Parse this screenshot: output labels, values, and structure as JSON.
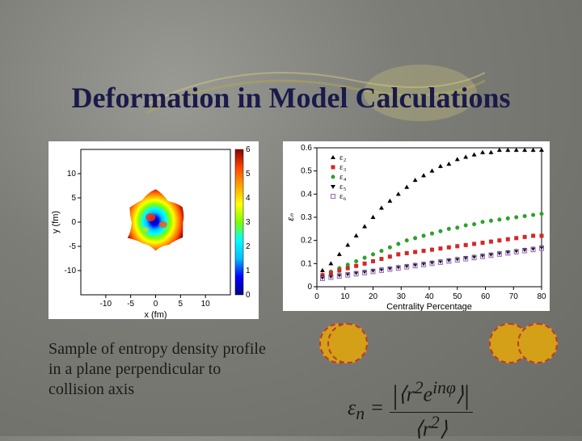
{
  "title": "Deformation in Model Calculations",
  "caption": "Sample of entropy density profile in a plane perpendicular to collision axis",
  "heatmap": {
    "xlabel": "x (fm)",
    "ylabel": "y (fm)",
    "xlim": [
      -15,
      15
    ],
    "ylim": [
      -15,
      15
    ],
    "xticks": [
      -10,
      -5,
      0,
      5,
      10
    ],
    "yticks": [
      -10,
      -5,
      0,
      5,
      10
    ],
    "colorbar": {
      "min": 0,
      "max": 6,
      "ticks": [
        0,
        1,
        2,
        3,
        4,
        5,
        6
      ]
    },
    "jet_colors": [
      "#00008b",
      "#0000ff",
      "#00bfff",
      "#00ffff",
      "#7fff00",
      "#ffff00",
      "#ffa500",
      "#ff4500",
      "#8b0000"
    ],
    "background": "#ffffff"
  },
  "linechart": {
    "xlabel": "Centrality Percentage",
    "ylabel": "εₙ",
    "xlim": [
      0,
      80
    ],
    "ylim": [
      0,
      0.6
    ],
    "xticks": [
      0,
      10,
      20,
      30,
      40,
      50,
      60,
      70,
      80
    ],
    "yticks": [
      0,
      0.1,
      0.2,
      0.3,
      0.4,
      0.5,
      0.6
    ],
    "background": "#ffffff",
    "legend": [
      {
        "label": "ε₂",
        "color": "#000000",
        "marker": "triangle"
      },
      {
        "label": "ε₃",
        "color": "#d62728",
        "marker": "square"
      },
      {
        "label": "ε₄",
        "color": "#2ca02c",
        "marker": "circle"
      },
      {
        "label": "ε₅",
        "color": "#000000",
        "marker": "tridown"
      },
      {
        "label": "ε₆",
        "color": "#9467bd",
        "marker": "opensquare"
      }
    ],
    "series": {
      "e2": {
        "x": [
          2,
          5,
          8,
          11,
          14,
          17,
          20,
          23,
          26,
          29,
          32,
          35,
          38,
          41,
          44,
          47,
          50,
          53,
          56,
          59,
          62,
          65,
          68,
          71,
          74,
          77,
          80
        ],
        "y": [
          0.07,
          0.1,
          0.14,
          0.18,
          0.22,
          0.26,
          0.3,
          0.34,
          0.37,
          0.4,
          0.43,
          0.46,
          0.48,
          0.5,
          0.52,
          0.53,
          0.55,
          0.56,
          0.57,
          0.58,
          0.58,
          0.59,
          0.59,
          0.59,
          0.59,
          0.59,
          0.59
        ],
        "color": "#000000"
      },
      "e3": {
        "x": [
          2,
          5,
          8,
          11,
          14,
          17,
          20,
          23,
          26,
          29,
          32,
          35,
          38,
          41,
          44,
          47,
          50,
          53,
          56,
          59,
          62,
          65,
          68,
          71,
          74,
          77,
          80
        ],
        "y": [
          0.05,
          0.06,
          0.07,
          0.08,
          0.09,
          0.1,
          0.11,
          0.12,
          0.13,
          0.14,
          0.145,
          0.15,
          0.155,
          0.16,
          0.165,
          0.17,
          0.175,
          0.18,
          0.185,
          0.19,
          0.195,
          0.2,
          0.205,
          0.21,
          0.215,
          0.22,
          0.22
        ],
        "color": "#d62728"
      },
      "e4": {
        "x": [
          2,
          5,
          8,
          11,
          14,
          17,
          20,
          23,
          26,
          29,
          32,
          35,
          38,
          41,
          44,
          47,
          50,
          53,
          56,
          59,
          62,
          65,
          68,
          71,
          74,
          77,
          80
        ],
        "y": [
          0.05,
          0.065,
          0.08,
          0.095,
          0.11,
          0.125,
          0.14,
          0.155,
          0.17,
          0.185,
          0.2,
          0.21,
          0.22,
          0.23,
          0.24,
          0.25,
          0.255,
          0.265,
          0.27,
          0.28,
          0.285,
          0.29,
          0.295,
          0.3,
          0.305,
          0.31,
          0.315
        ],
        "color": "#2ca02c"
      },
      "e5": {
        "x": [
          2,
          5,
          8,
          11,
          14,
          17,
          20,
          23,
          26,
          29,
          32,
          35,
          38,
          41,
          44,
          47,
          50,
          53,
          56,
          59,
          62,
          65,
          68,
          71,
          74,
          77,
          80
        ],
        "y": [
          0.04,
          0.045,
          0.05,
          0.055,
          0.06,
          0.065,
          0.07,
          0.075,
          0.08,
          0.085,
          0.09,
          0.095,
          0.1,
          0.105,
          0.11,
          0.115,
          0.12,
          0.125,
          0.13,
          0.135,
          0.14,
          0.145,
          0.15,
          0.155,
          0.16,
          0.165,
          0.17
        ],
        "color": "#000000"
      },
      "e6": {
        "x": [
          2,
          5,
          8,
          11,
          14,
          17,
          20,
          23,
          26,
          29,
          32,
          35,
          38,
          41,
          44,
          47,
          50,
          53,
          56,
          59,
          62,
          65,
          68,
          71,
          74,
          77,
          80
        ],
        "y": [
          0.035,
          0.04,
          0.045,
          0.05,
          0.055,
          0.06,
          0.065,
          0.07,
          0.075,
          0.08,
          0.085,
          0.09,
          0.095,
          0.1,
          0.105,
          0.11,
          0.115,
          0.12,
          0.125,
          0.13,
          0.135,
          0.14,
          0.145,
          0.15,
          0.155,
          0.16,
          0.165
        ],
        "color": "#9467bd"
      }
    }
  },
  "circle_pair_a": {
    "offset_x": 10,
    "fill": "#d4a017",
    "stroke": "#c0392b"
  },
  "circle_pair_b": {
    "offset_x": 35,
    "fill": "#d4a017",
    "stroke": "#c0392b"
  },
  "formula": {
    "lhs": "εₙ =",
    "num": "⟨ r² e^{inφ} ⟩",
    "den": "⟨ r² ⟩"
  }
}
